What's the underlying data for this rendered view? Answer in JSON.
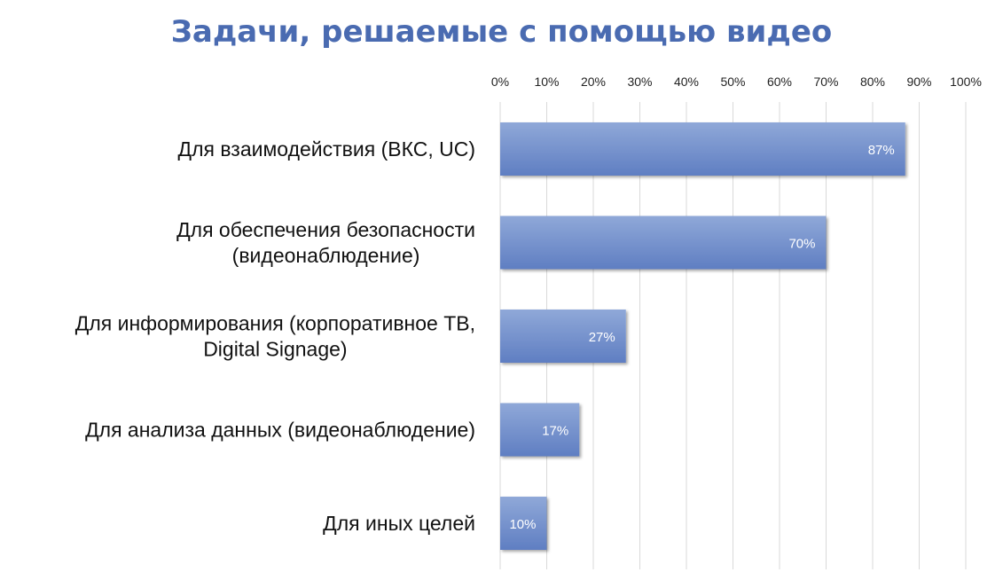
{
  "chart_data": {
    "type": "bar",
    "orientation": "horizontal",
    "title": "Задачи, решаемые с помощью видео",
    "categories": [
      [
        "Для взаимодействия (ВКС, UC)"
      ],
      [
        "Для обеспечения безопасности",
        "(видеонаблюдение)"
      ],
      [
        "Для информирования (корпоративное ТВ,",
        "Digital Signage)"
      ],
      [
        "Для анализа данных (видеонаблюдение)"
      ],
      [
        "Для иных целей"
      ]
    ],
    "values": [
      87,
      70,
      27,
      17,
      10
    ],
    "data_labels": [
      "87%",
      "70%",
      "27%",
      "17%",
      "10%"
    ],
    "xlim": [
      0,
      100
    ],
    "x_ticks": [
      "0%",
      "10%",
      "20%",
      "30%",
      "40%",
      "50%",
      "60%",
      "70%",
      "80%",
      "90%",
      "100%"
    ],
    "x_axis_position": "top",
    "grid": true,
    "colors": {
      "bar_top": "#8fa8d8",
      "bar_bottom": "#5f7ec2",
      "title": "#4a6bb1",
      "grid": "#d9d9d9"
    }
  }
}
